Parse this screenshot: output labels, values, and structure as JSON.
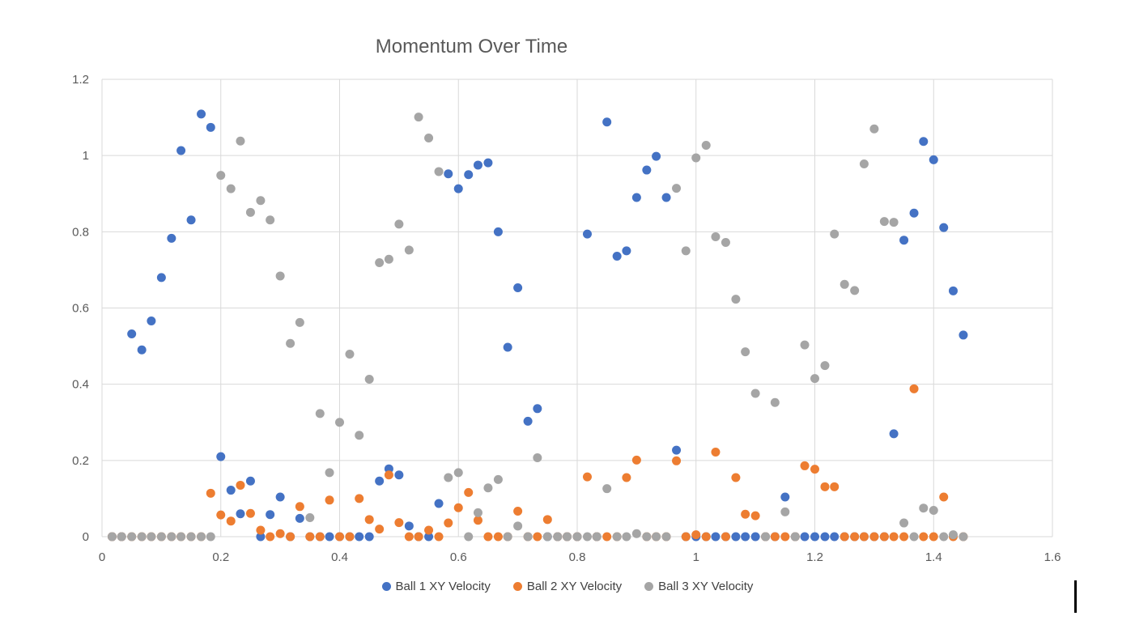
{
  "chart_data": {
    "type": "scatter",
    "title": "Momentum Over Time",
    "xlabel": "",
    "ylabel": "",
    "xlim": [
      0,
      1.6
    ],
    "ylim": [
      0,
      1.2
    ],
    "x_ticks": [
      0,
      0.2,
      0.4,
      0.6,
      0.8,
      1,
      1.2,
      1.4,
      1.6
    ],
    "y_ticks": [
      0,
      0.2,
      0.4,
      0.6,
      0.8,
      1,
      1.2
    ],
    "x_tick_labels": [
      "0",
      "0.2",
      "0.4",
      "0.6",
      "0.8",
      "1",
      "1.2",
      "1.4",
      "1.6"
    ],
    "y_tick_labels": [
      "0",
      "0.2",
      "0.4",
      "0.6",
      "0.8",
      "1",
      "1.2"
    ],
    "grid": true,
    "legend_position": "bottom",
    "series": [
      {
        "name": "Ball 1 XY Velocity",
        "color": "#4472C4",
        "points": [
          [
            0.017,
            0
          ],
          [
            0.033,
            0
          ],
          [
            0.05,
            0.532
          ],
          [
            0.067,
            0.49
          ],
          [
            0.083,
            0.566
          ],
          [
            0.1,
            0.68
          ],
          [
            0.117,
            0.783
          ],
          [
            0.133,
            1.013
          ],
          [
            0.15,
            0.831
          ],
          [
            0.167,
            1.109
          ],
          [
            0.183,
            1.074
          ],
          [
            0.2,
            0.21
          ],
          [
            0.217,
            0.122
          ],
          [
            0.233,
            0.06
          ],
          [
            0.25,
            0.146
          ],
          [
            0.267,
            0
          ],
          [
            0.283,
            0.058
          ],
          [
            0.3,
            0.104
          ],
          [
            0.317,
            0
          ],
          [
            0.333,
            0.048
          ],
          [
            0.35,
            0
          ],
          [
            0.367,
            0
          ],
          [
            0.383,
            0
          ],
          [
            0.4,
            0
          ],
          [
            0.417,
            0
          ],
          [
            0.433,
            0
          ],
          [
            0.45,
            0
          ],
          [
            0.467,
            0.146
          ],
          [
            0.483,
            0.178
          ],
          [
            0.5,
            0.162
          ],
          [
            0.517,
            0.028
          ],
          [
            0.533,
            0
          ],
          [
            0.55,
            0
          ],
          [
            0.567,
            0.087
          ],
          [
            0.583,
            0.952
          ],
          [
            0.6,
            0.913
          ],
          [
            0.617,
            0.95
          ],
          [
            0.633,
            0.975
          ],
          [
            0.65,
            0.981
          ],
          [
            0.667,
            0.8
          ],
          [
            0.683,
            0.497
          ],
          [
            0.7,
            0.653
          ],
          [
            0.717,
            0.303
          ],
          [
            0.733,
            0.336
          ],
          [
            0.75,
            0
          ],
          [
            0.767,
            0
          ],
          [
            0.783,
            0
          ],
          [
            0.8,
            0
          ],
          [
            0.817,
            0.794
          ],
          [
            0.833,
            0
          ],
          [
            0.85,
            1.088
          ],
          [
            0.867,
            0.736
          ],
          [
            0.883,
            0.75
          ],
          [
            0.9,
            0.89
          ],
          [
            0.917,
            0.962
          ],
          [
            0.933,
            0.998
          ],
          [
            0.95,
            0.89
          ],
          [
            0.967,
            0.227
          ],
          [
            0.983,
            0
          ],
          [
            1,
            0
          ],
          [
            1.017,
            0
          ],
          [
            1.033,
            0
          ],
          [
            1.05,
            0
          ],
          [
            1.067,
            0
          ],
          [
            1.083,
            0
          ],
          [
            1.1,
            0
          ],
          [
            1.117,
            0
          ],
          [
            1.133,
            0
          ],
          [
            1.15,
            0.104
          ],
          [
            1.167,
            0
          ],
          [
            1.183,
            0
          ],
          [
            1.2,
            0
          ],
          [
            1.217,
            0
          ],
          [
            1.233,
            0
          ],
          [
            1.25,
            0
          ],
          [
            1.267,
            0
          ],
          [
            1.283,
            0
          ],
          [
            1.3,
            0
          ],
          [
            1.317,
            0
          ],
          [
            1.333,
            0.27
          ],
          [
            1.35,
            0.778
          ],
          [
            1.367,
            0.849
          ],
          [
            1.383,
            1.037
          ],
          [
            1.4,
            0.989
          ],
          [
            1.417,
            0.811
          ],
          [
            1.433,
            0.645
          ],
          [
            1.45,
            0.529
          ]
        ]
      },
      {
        "name": "Ball 2 XY Velocity",
        "color": "#ED7D31",
        "points": [
          [
            0.017,
            0
          ],
          [
            0.033,
            0
          ],
          [
            0.05,
            0
          ],
          [
            0.067,
            0
          ],
          [
            0.083,
            0
          ],
          [
            0.1,
            0
          ],
          [
            0.117,
            0
          ],
          [
            0.133,
            0
          ],
          [
            0.15,
            0
          ],
          [
            0.167,
            0
          ],
          [
            0.183,
            0.114
          ],
          [
            0.2,
            0.057
          ],
          [
            0.217,
            0.041
          ],
          [
            0.233,
            0.135
          ],
          [
            0.25,
            0.061
          ],
          [
            0.267,
            0.017
          ],
          [
            0.283,
            0
          ],
          [
            0.3,
            0.008
          ],
          [
            0.317,
            0
          ],
          [
            0.333,
            0.079
          ],
          [
            0.35,
            0
          ],
          [
            0.367,
            0
          ],
          [
            0.383,
            0.096
          ],
          [
            0.4,
            0
          ],
          [
            0.417,
            0
          ],
          [
            0.433,
            0.1
          ],
          [
            0.45,
            0.045
          ],
          [
            0.467,
            0.02
          ],
          [
            0.483,
            0.162
          ],
          [
            0.5,
            0.037
          ],
          [
            0.517,
            0
          ],
          [
            0.533,
            0
          ],
          [
            0.55,
            0.017
          ],
          [
            0.567,
            0
          ],
          [
            0.583,
            0.036
          ],
          [
            0.6,
            0.076
          ],
          [
            0.617,
            0.116
          ],
          [
            0.633,
            0.043
          ],
          [
            0.65,
            0
          ],
          [
            0.667,
            0
          ],
          [
            0.683,
            0
          ],
          [
            0.7,
            0.067
          ],
          [
            0.717,
            0
          ],
          [
            0.733,
            0
          ],
          [
            0.75,
            0.045
          ],
          [
            0.767,
            0
          ],
          [
            0.783,
            0
          ],
          [
            0.8,
            0
          ],
          [
            0.817,
            0.157
          ],
          [
            0.833,
            0
          ],
          [
            0.85,
            0
          ],
          [
            0.867,
            0
          ],
          [
            0.883,
            0.155
          ],
          [
            0.9,
            0.201
          ],
          [
            0.917,
            0
          ],
          [
            0.933,
            0
          ],
          [
            0.95,
            0
          ],
          [
            0.967,
            0.199
          ],
          [
            0.983,
            0
          ],
          [
            1,
            0.005
          ],
          [
            1.017,
            0
          ],
          [
            1.033,
            0.222
          ],
          [
            1.05,
            0
          ],
          [
            1.067,
            0.155
          ],
          [
            1.083,
            0.059
          ],
          [
            1.1,
            0.055
          ],
          [
            1.117,
            0
          ],
          [
            1.133,
            0
          ],
          [
            1.15,
            0
          ],
          [
            1.167,
            0
          ],
          [
            1.183,
            0.186
          ],
          [
            1.2,
            0.177
          ],
          [
            1.217,
            0.131
          ],
          [
            1.233,
            0.131
          ],
          [
            1.25,
            0
          ],
          [
            1.267,
            0
          ],
          [
            1.283,
            0
          ],
          [
            1.3,
            0
          ],
          [
            1.317,
            0
          ],
          [
            1.333,
            0
          ],
          [
            1.35,
            0
          ],
          [
            1.367,
            0.388
          ],
          [
            1.383,
            0
          ],
          [
            1.4,
            0
          ],
          [
            1.417,
            0.104
          ],
          [
            1.433,
            0
          ],
          [
            1.45,
            0
          ]
        ]
      },
      {
        "name": "Ball 3 XY Velocity",
        "color": "#A5A5A5",
        "points": [
          [
            0.017,
            0
          ],
          [
            0.033,
            0
          ],
          [
            0.05,
            0
          ],
          [
            0.067,
            0
          ],
          [
            0.083,
            0
          ],
          [
            0.1,
            0
          ],
          [
            0.117,
            0
          ],
          [
            0.133,
            0
          ],
          [
            0.15,
            0
          ],
          [
            0.167,
            0
          ],
          [
            0.183,
            0
          ],
          [
            0.2,
            0.948
          ],
          [
            0.217,
            0.913
          ],
          [
            0.233,
            1.038
          ],
          [
            0.25,
            0.851
          ],
          [
            0.267,
            0.882
          ],
          [
            0.283,
            0.831
          ],
          [
            0.3,
            0.684
          ],
          [
            0.317,
            0.507
          ],
          [
            0.333,
            0.562
          ],
          [
            0.35,
            0.05
          ],
          [
            0.367,
            0.323
          ],
          [
            0.383,
            0.168
          ],
          [
            0.4,
            0.3
          ],
          [
            0.417,
            0.479
          ],
          [
            0.433,
            0.266
          ],
          [
            0.45,
            0.413
          ],
          [
            0.467,
            0.719
          ],
          [
            0.483,
            0.728
          ],
          [
            0.5,
            0.82
          ],
          [
            0.517,
            0.752
          ],
          [
            0.533,
            1.101
          ],
          [
            0.55,
            1.046
          ],
          [
            0.567,
            0.958
          ],
          [
            0.583,
            0.155
          ],
          [
            0.6,
            0.168
          ],
          [
            0.617,
            0
          ],
          [
            0.633,
            0.063
          ],
          [
            0.65,
            0.128
          ],
          [
            0.667,
            0.15
          ],
          [
            0.683,
            0
          ],
          [
            0.7,
            0.028
          ],
          [
            0.717,
            0
          ],
          [
            0.733,
            0.207
          ],
          [
            0.75,
            0
          ],
          [
            0.767,
            0
          ],
          [
            0.783,
            0
          ],
          [
            0.8,
            0
          ],
          [
            0.817,
            0
          ],
          [
            0.833,
            0
          ],
          [
            0.85,
            0.126
          ],
          [
            0.867,
            0
          ],
          [
            0.883,
            0
          ],
          [
            0.9,
            0.008
          ],
          [
            0.917,
            0
          ],
          [
            0.933,
            0
          ],
          [
            0.95,
            0
          ],
          [
            0.967,
            0.914
          ],
          [
            0.983,
            0.75
          ],
          [
            1,
            0.994
          ],
          [
            1.017,
            1.027
          ],
          [
            1.033,
            0.787
          ],
          [
            1.05,
            0.772
          ],
          [
            1.067,
            0.623
          ],
          [
            1.083,
            0.485
          ],
          [
            1.1,
            0.376
          ],
          [
            1.117,
            0
          ],
          [
            1.133,
            0.352
          ],
          [
            1.15,
            0.065
          ],
          [
            1.167,
            0
          ],
          [
            1.183,
            0.503
          ],
          [
            1.2,
            0.415
          ],
          [
            1.217,
            0.449
          ],
          [
            1.233,
            0.794
          ],
          [
            1.25,
            0.662
          ],
          [
            1.267,
            0.646
          ],
          [
            1.283,
            0.978
          ],
          [
            1.3,
            1.07
          ],
          [
            1.317,
            0.827
          ],
          [
            1.333,
            0.825
          ],
          [
            1.35,
            0.036
          ],
          [
            1.367,
            0
          ],
          [
            1.383,
            0.075
          ],
          [
            1.4,
            0.069
          ],
          [
            1.417,
            0
          ],
          [
            1.433,
            0.005
          ],
          [
            1.45,
            0
          ]
        ]
      }
    ]
  }
}
